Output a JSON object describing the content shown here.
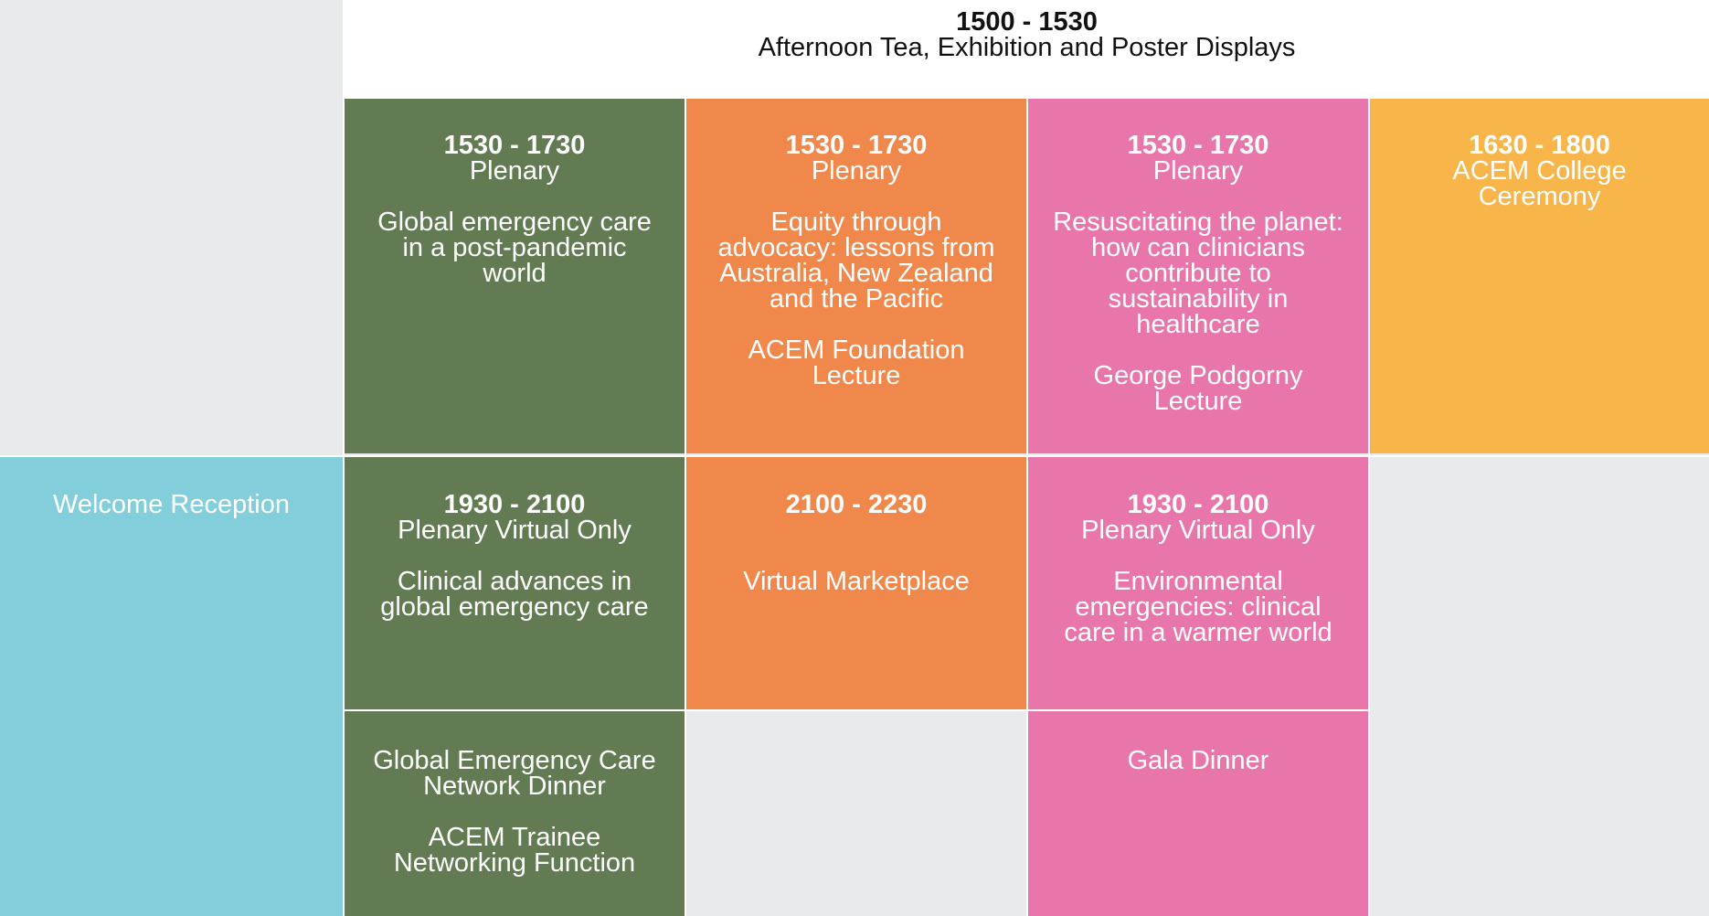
{
  "tea": {
    "time": "1500 - 1530",
    "title": "Afternoon Tea, Exhibition and Poster Displays"
  },
  "row1": [
    {
      "time": "1530 - 1730",
      "kind": "Plenary",
      "title": "Global emergency care in a post-pandemic world",
      "sub": ""
    },
    {
      "time": "1530 - 1730",
      "kind": "Plenary",
      "title": "Equity through advocacy: lessons from Australia, New Zealand and the Pacific",
      "sub": "ACEM Foundation Lecture"
    },
    {
      "time": "1530 - 1730",
      "kind": "Plenary",
      "title": "Resuscitating the planet: how can clinicians contribute to sustainability in healthcare",
      "sub": "George Podgorny Lecture"
    },
    {
      "time": "1630 - 1800",
      "kind": "ACEM College Ceremony",
      "title": "",
      "sub": ""
    }
  ],
  "welcome": {
    "label": "Welcome Reception"
  },
  "row2": [
    {
      "time": "1930 - 2100",
      "kind": "Plenary Virtual Only",
      "title": "Clinical advances in global emergency care"
    },
    {
      "time": "2100 - 2230",
      "kind": "",
      "title": "Virtual Marketplace"
    },
    {
      "time": "1930 - 2100",
      "kind": "Plenary Virtual Only",
      "title": "Environmental emergencies: clinical care in a warmer world"
    }
  ],
  "row3": {
    "green_title": "Global Emergency Care Network Dinner",
    "green_sub": "ACEM Trainee Networking Function",
    "pink_title": "Gala Dinner"
  },
  "colors": {
    "green": "#627b53",
    "orange": "#f0874b",
    "pink": "#e976aa",
    "yellow": "#f7b54a",
    "teal": "#82cfdb",
    "background": "#e9eaec"
  }
}
